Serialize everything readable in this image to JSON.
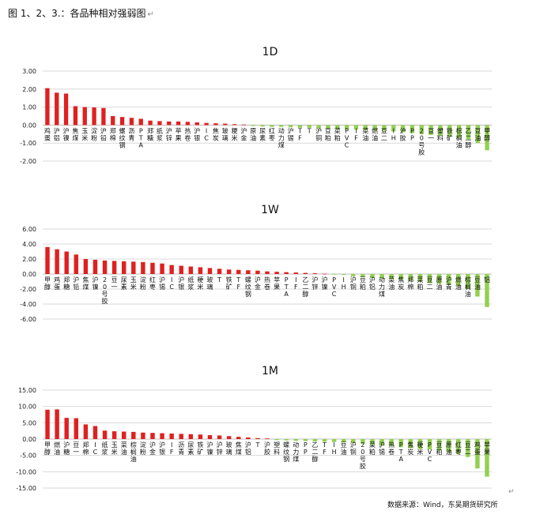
{
  "caption": "图 1、2、3.：各品种相对强弱图",
  "source_note": "数据来源：Wind，东吴期货研究所",
  "colors": {
    "positive": "#E02020",
    "negative": "#92D050",
    "grid": "#D9D9D9",
    "axis": "#BFBFBF"
  },
  "chart_data": [
    {
      "type": "bar",
      "title": "1D",
      "ylim": [
        -2,
        3
      ],
      "yticks": [
        "3.00",
        "2.00",
        "1.00",
        "0.00",
        "-1.00",
        "-2.00"
      ],
      "grid": true,
      "categories": [
        "鸡蛋",
        "沪铝",
        "沪镍",
        "焦煤",
        "玉米",
        "淀粉",
        "沪铅",
        "郑棉",
        "螺纹钢",
        "沥青",
        "PTA",
        "郑糖",
        "纸浆",
        "沪锌",
        "苹果",
        "热卷",
        "沪银",
        "IC",
        "焦炭",
        "玻璃",
        "粳米",
        "沪金",
        "原油",
        "尿素",
        "红枣",
        "动力煤",
        "沪锡",
        "TF",
        "T",
        "沪铜",
        "豆粕",
        "菜粕",
        "PVC",
        "IF",
        "菜油",
        "燃油",
        "豆二",
        "IH",
        "沪胶",
        "PP",
        "20号胶",
        "豆一",
        "塑料",
        "铁矿",
        "棕榈油",
        "乙二醇",
        "豆油",
        "甲醇"
      ],
      "values": [
        2.05,
        1.8,
        1.75,
        1.05,
        1.0,
        0.98,
        0.95,
        0.5,
        0.45,
        0.4,
        0.35,
        0.25,
        0.22,
        0.2,
        0.2,
        0.18,
        0.15,
        0.12,
        0.1,
        0.08,
        0.05,
        0.03,
        -0.05,
        -0.08,
        -0.1,
        -0.1,
        -0.12,
        -0.15,
        -0.15,
        -0.18,
        -0.2,
        -0.22,
        -0.25,
        -0.25,
        -0.28,
        -0.3,
        -0.32,
        -0.35,
        -0.4,
        -0.45,
        -0.5,
        -0.55,
        -0.6,
        -0.65,
        -0.7,
        -0.8,
        -1.0,
        -1.4
      ]
    },
    {
      "type": "bar",
      "title": "1W",
      "ylim": [
        -6,
        6
      ],
      "yticks": [
        "6.00",
        "4.00",
        "2.00",
        "0.00",
        "-2.00",
        "-4.00",
        "-6.00"
      ],
      "grid": true,
      "categories": [
        "甲醇",
        "鸡蛋",
        "郑糖",
        "沪铅",
        "焦煤",
        "沪镍",
        "20号胶",
        "豆一",
        "尿素",
        "玉米",
        "淀粉",
        "红枣",
        "沪锡",
        "IC",
        "沪银",
        "纸浆",
        "粳米",
        "玻璃",
        "T",
        "铁矿",
        "TF",
        "螺纹钢",
        "沪金",
        "热卷",
        "苹果",
        "PTA",
        "IF",
        "乙二醇",
        "沪锌",
        "沪镍",
        "PVC",
        "IH",
        "沪铜",
        "豆粕",
        "沪铝",
        "动力煤",
        "菜油",
        "焦炭",
        "郑棉",
        "菜粕",
        "豆二",
        "原油",
        "沪青",
        "燃油",
        "棕榈油",
        "豆油",
        "铝"
      ],
      "values": [
        3.6,
        3.3,
        3.0,
        2.6,
        2.0,
        1.9,
        1.8,
        1.75,
        1.7,
        1.65,
        1.6,
        1.5,
        1.4,
        1.2,
        1.1,
        1.0,
        0.9,
        0.8,
        0.7,
        0.6,
        0.55,
        0.5,
        0.45,
        0.35,
        0.3,
        0.25,
        0.2,
        0.15,
        0.1,
        0.05,
        -0.05,
        -0.1,
        -0.3,
        -0.4,
        -0.5,
        -0.6,
        -0.7,
        -0.8,
        -0.9,
        -1.0,
        -1.2,
        -1.3,
        -1.4,
        -1.6,
        -2.0,
        -3.0,
        -4.4
      ]
    },
    {
      "type": "bar",
      "title": "1M",
      "ylim": [
        -15,
        15
      ],
      "yticks": [
        "15.00",
        "10.00",
        "5.00",
        "0.00",
        "-5.00",
        "-10.00",
        "-15.00"
      ],
      "grid": true,
      "categories": [
        "甲醇",
        "燃油",
        "沪糖",
        "豆一",
        "郑棉",
        "IC",
        "纸浆",
        "玉米",
        "菜油",
        "棕榈油",
        "淀粉",
        "沪金",
        "沪银",
        "IF",
        "沥青",
        "尿素",
        "铁矿",
        "沪镍",
        "沪锌",
        "玻璃",
        "焦煤",
        "沪铝",
        "T",
        "沪胶",
        "塑料",
        "螺纹钢",
        "动力煤",
        "PP",
        "乙二醇",
        "TF",
        "IH",
        "豆油",
        "沪铜",
        "20号胶",
        "菜粕",
        "沪锡",
        "热卷",
        "PTA",
        "焦炭",
        "粳米",
        "PVC",
        "豆粕",
        "原油",
        "红枣",
        "豆二",
        "鸡蛋",
        "苹果"
      ],
      "values": [
        9.0,
        9.1,
        6.5,
        6.4,
        4.5,
        4.0,
        2.6,
        2.4,
        2.3,
        2.2,
        2.0,
        1.9,
        1.8,
        1.7,
        1.6,
        1.5,
        1.4,
        1.2,
        1.1,
        0.9,
        0.7,
        0.5,
        0.3,
        0.2,
        -0.3,
        -0.4,
        -0.5,
        -0.6,
        -0.7,
        -0.8,
        -0.9,
        -1.0,
        -1.2,
        -1.5,
        -1.8,
        -2.0,
        -2.2,
        -2.5,
        -2.8,
        -3.0,
        -3.2,
        -3.5,
        -4.0,
        -4.5,
        -5.5,
        -9.0,
        -11.5
      ]
    }
  ]
}
